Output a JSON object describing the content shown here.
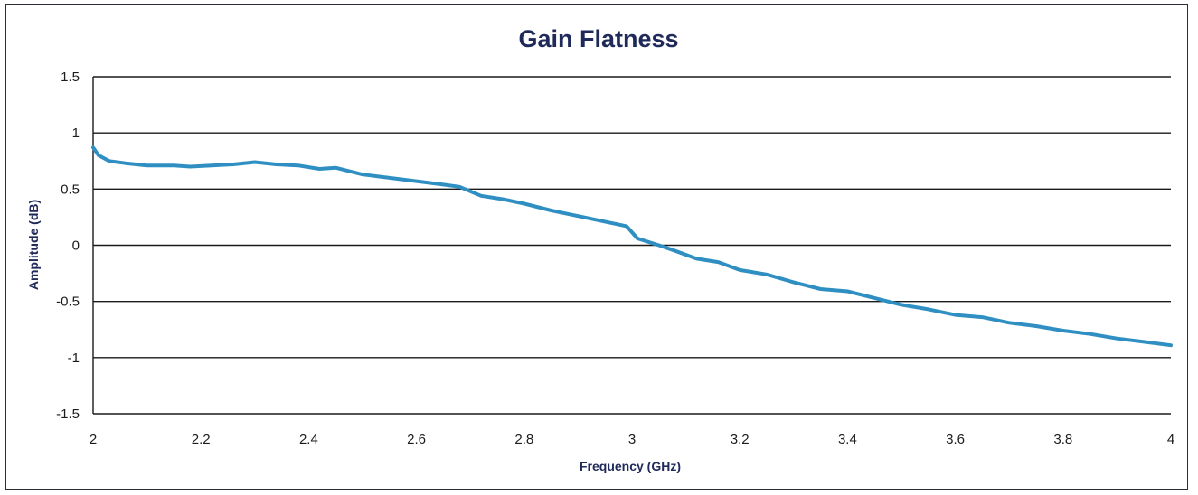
{
  "chart_data": {
    "type": "line",
    "title": "Gain Flatness",
    "xlabel": "Frequency (GHz)",
    "ylabel": "Amplitude (dB)",
    "xlim": [
      2,
      4
    ],
    "ylim": [
      -1.5,
      1.5
    ],
    "x_ticks": [
      "2",
      "2.2",
      "2.4",
      "2.6",
      "2.8",
      "3",
      "3.2",
      "3.4",
      "3.6",
      "3.8",
      "4"
    ],
    "y_ticks": [
      "1.5",
      "1",
      "0.5",
      "0",
      "-0.5",
      "-1",
      "-1.5"
    ],
    "grid": true,
    "legend": "none",
    "color": "#2f8fc2",
    "series": [
      {
        "x": [
          2.0,
          2.01,
          2.03,
          2.06,
          2.1,
          2.15,
          2.18,
          2.22,
          2.26,
          2.3,
          2.34,
          2.38,
          2.42,
          2.45,
          2.5,
          2.55,
          2.6,
          2.65,
          2.68,
          2.72,
          2.76,
          2.8,
          2.85,
          2.9,
          2.95,
          2.99,
          3.01,
          3.05,
          3.08,
          3.12,
          3.16,
          3.2,
          3.25,
          3.3,
          3.35,
          3.4,
          3.45,
          3.5,
          3.55,
          3.6,
          3.65,
          3.7,
          3.75,
          3.8,
          3.85,
          3.9,
          3.95,
          4.0
        ],
        "y": [
          0.87,
          0.8,
          0.75,
          0.73,
          0.71,
          0.71,
          0.7,
          0.71,
          0.72,
          0.74,
          0.72,
          0.71,
          0.68,
          0.69,
          0.63,
          0.6,
          0.57,
          0.54,
          0.52,
          0.44,
          0.41,
          0.37,
          0.31,
          0.26,
          0.21,
          0.17,
          0.06,
          0.0,
          -0.05,
          -0.12,
          -0.15,
          -0.22,
          -0.26,
          -0.33,
          -0.39,
          -0.41,
          -0.47,
          -0.53,
          -0.57,
          -0.62,
          -0.64,
          -0.69,
          -0.72,
          -0.76,
          -0.79,
          -0.83,
          -0.86,
          -0.89
        ]
      }
    ]
  }
}
